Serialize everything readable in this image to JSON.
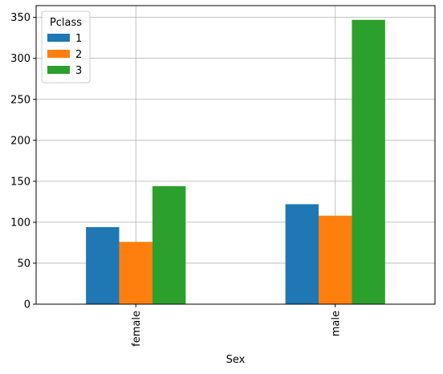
{
  "chart_data": {
    "type": "bar",
    "xlabel": "Sex",
    "ylabel": "",
    "categories": [
      "female",
      "male"
    ],
    "series": [
      {
        "name": "1",
        "values": [
          94,
          122
        ],
        "color": "#1f77b4"
      },
      {
        "name": "2",
        "values": [
          76,
          108
        ],
        "color": "#ff7f0e"
      },
      {
        "name": "3",
        "values": [
          144,
          347
        ],
        "color": "#2ca02c"
      }
    ],
    "ylim": [
      0,
      364.35
    ],
    "yticks": [
      0,
      50,
      100,
      150,
      200,
      250,
      300,
      350
    ],
    "grid": true,
    "legend": {
      "title": "Pclass",
      "placement": "top-left"
    }
  }
}
